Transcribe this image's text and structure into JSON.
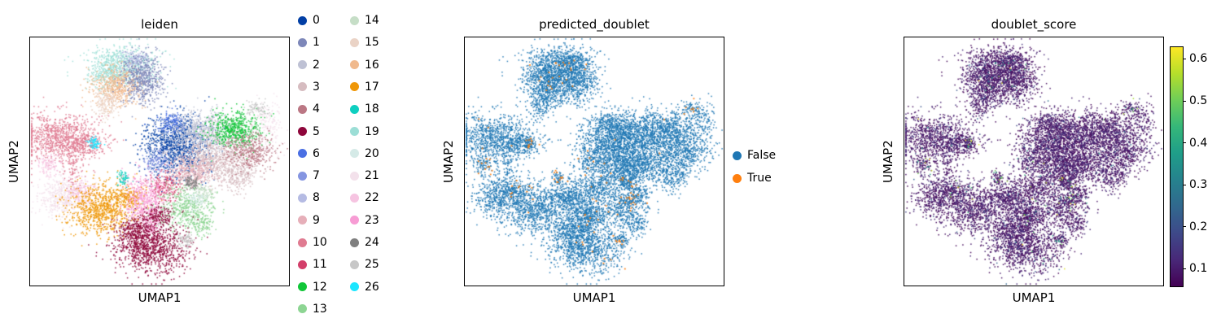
{
  "figure": {
    "background": "#ffffff",
    "panels": [
      {
        "title": "leiden",
        "xlabel": "UMAP1",
        "ylabel": "UMAP2"
      },
      {
        "title": "predicted_doublet",
        "xlabel": "UMAP1",
        "ylabel": "UMAP2"
      },
      {
        "title": "doublet_score",
        "xlabel": "UMAP1",
        "ylabel": "UMAP2"
      }
    ]
  },
  "chart_data": [
    {
      "type": "scatter",
      "title": "leiden",
      "xlabel": "UMAP1",
      "ylabel": "UMAP2",
      "legend_position": "right of axes, two columns",
      "categories": [
        "0",
        "1",
        "2",
        "3",
        "4",
        "5",
        "6",
        "7",
        "8",
        "9",
        "10",
        "11",
        "12",
        "13",
        "14",
        "15",
        "16",
        "17",
        "18",
        "19",
        "20",
        "21",
        "22",
        "23",
        "24",
        "25",
        "26"
      ],
      "palette": [
        "#023fa5",
        "#7d87b9",
        "#bec1d4",
        "#d6bcc0",
        "#bb7784",
        "#8e063b",
        "#4a6fe3",
        "#8595e1",
        "#b5bbe3",
        "#e6afb9",
        "#e07b91",
        "#d33f6a",
        "#11c638",
        "#8dd593",
        "#c6dec7",
        "#ead3c6",
        "#f0b98d",
        "#ef9708",
        "#0fcfc0",
        "#9cded6",
        "#d5eae7",
        "#f3e1eb",
        "#f6c4e1",
        "#f79cd4",
        "#7f7f7f",
        "#c7c7c7",
        "#1ce6ff"
      ],
      "coord_space": "axes fraction (x right, y down), estimated from pixels",
      "embedding_blobs": [
        {
          "cluster": "19",
          "cx": 0.356,
          "cy": 0.114,
          "sx": 0.07,
          "sy": 0.042,
          "n": 600
        },
        {
          "cluster": "19",
          "cx": 0.3,
          "cy": 0.15,
          "sx": 0.035,
          "sy": 0.028,
          "n": 180
        },
        {
          "cluster": "8",
          "cx": 0.405,
          "cy": 0.095,
          "sx": 0.028,
          "sy": 0.022,
          "n": 140,
          "dr": 0.06
        },
        {
          "cluster": "16",
          "cx": 0.335,
          "cy": 0.2,
          "sx": 0.05,
          "sy": 0.038,
          "n": 520,
          "dr": 0.03
        },
        {
          "cluster": "15",
          "cx": 0.298,
          "cy": 0.262,
          "sx": 0.028,
          "sy": 0.032,
          "n": 170
        },
        {
          "cluster": "1",
          "cx": 0.437,
          "cy": 0.165,
          "sx": 0.042,
          "sy": 0.052,
          "n": 550
        },
        {
          "cluster": "10",
          "cx": 0.125,
          "cy": 0.405,
          "sx": 0.08,
          "sy": 0.048,
          "n": 900
        },
        {
          "cluster": "10",
          "cx": 0.21,
          "cy": 0.432,
          "sx": 0.038,
          "sy": 0.022,
          "n": 180
        },
        {
          "cluster": "26",
          "cx": 0.25,
          "cy": 0.424,
          "sx": 0.012,
          "sy": 0.012,
          "n": 70,
          "dr": 0.15
        },
        {
          "cluster": "22",
          "cx": 0.068,
          "cy": 0.505,
          "sx": 0.022,
          "sy": 0.028,
          "n": 110,
          "dr": 0.1
        },
        {
          "cluster": "0",
          "cx": 0.563,
          "cy": 0.437,
          "sx": 0.062,
          "sy": 0.058,
          "n": 1100
        },
        {
          "cluster": "6",
          "cx": 0.545,
          "cy": 0.345,
          "sx": 0.026,
          "sy": 0.02,
          "n": 130
        },
        {
          "cluster": "2",
          "cx": 0.66,
          "cy": 0.383,
          "sx": 0.062,
          "sy": 0.044,
          "n": 700
        },
        {
          "cluster": "12",
          "cx": 0.795,
          "cy": 0.372,
          "sx": 0.052,
          "sy": 0.038,
          "n": 550
        },
        {
          "cluster": "3",
          "cx": 0.705,
          "cy": 0.495,
          "sx": 0.078,
          "sy": 0.048,
          "n": 800
        },
        {
          "cluster": "3",
          "cx": 0.805,
          "cy": 0.565,
          "sx": 0.038,
          "sy": 0.032,
          "n": 200
        },
        {
          "cluster": "4",
          "cx": 0.848,
          "cy": 0.458,
          "sx": 0.048,
          "sy": 0.038,
          "n": 400
        },
        {
          "cluster": "9",
          "cx": 0.618,
          "cy": 0.545,
          "sx": 0.048,
          "sy": 0.033,
          "n": 350
        },
        {
          "cluster": "7",
          "cx": 0.492,
          "cy": 0.5,
          "sx": 0.03,
          "sy": 0.026,
          "n": 150,
          "dr": 0.05
        },
        {
          "cluster": "21",
          "cx": 0.92,
          "cy": 0.35,
          "sx": 0.03,
          "sy": 0.048,
          "n": 150
        },
        {
          "cluster": "25",
          "cx": 0.872,
          "cy": 0.29,
          "sx": 0.024,
          "sy": 0.018,
          "n": 80,
          "dr": 0.12
        },
        {
          "cluster": "24",
          "cx": 0.625,
          "cy": 0.585,
          "sx": 0.014,
          "sy": 0.014,
          "n": 90,
          "dr": 0.1
        },
        {
          "cluster": "21",
          "cx": 0.13,
          "cy": 0.638,
          "sx": 0.048,
          "sy": 0.042,
          "n": 450
        },
        {
          "cluster": "22",
          "cx": 0.198,
          "cy": 0.622,
          "sx": 0.028,
          "sy": 0.024,
          "n": 150,
          "dr": 0.08
        },
        {
          "cluster": "17",
          "cx": 0.285,
          "cy": 0.69,
          "sx": 0.068,
          "sy": 0.052,
          "n": 900
        },
        {
          "cluster": "18",
          "cx": 0.362,
          "cy": 0.568,
          "sx": 0.014,
          "sy": 0.014,
          "n": 60,
          "dr": 0.25
        },
        {
          "cluster": "11",
          "cx": 0.52,
          "cy": 0.6,
          "sx": 0.028,
          "sy": 0.028,
          "n": 180,
          "dr": 0.05
        },
        {
          "cluster": "23",
          "cx": 0.438,
          "cy": 0.652,
          "sx": 0.042,
          "sy": 0.052,
          "n": 550
        },
        {
          "cluster": "23",
          "cx": 0.468,
          "cy": 0.758,
          "sx": 0.018,
          "sy": 0.036,
          "n": 120
        },
        {
          "cluster": "13",
          "cx": 0.6,
          "cy": 0.69,
          "sx": 0.052,
          "sy": 0.042,
          "n": 450
        },
        {
          "cluster": "13",
          "cx": 0.665,
          "cy": 0.752,
          "sx": 0.024,
          "sy": 0.032,
          "n": 100
        },
        {
          "cluster": "14",
          "cx": 0.668,
          "cy": 0.628,
          "sx": 0.024,
          "sy": 0.02,
          "n": 100,
          "dr": 0.06
        },
        {
          "cluster": "20",
          "cx": 0.64,
          "cy": 0.655,
          "sx": 0.02,
          "sy": 0.018,
          "n": 80,
          "dr": 0.08
        },
        {
          "cluster": "5",
          "cx": 0.468,
          "cy": 0.845,
          "sx": 0.072,
          "sy": 0.052,
          "n": 1000
        },
        {
          "cluster": "5",
          "cx": 0.402,
          "cy": 0.78,
          "sx": 0.03,
          "sy": 0.028,
          "n": 200
        },
        {
          "cluster": "5",
          "cx": 0.5,
          "cy": 0.722,
          "sx": 0.028,
          "sy": 0.024,
          "n": 150,
          "dr": 0.04
        },
        {
          "cluster": "25",
          "cx": 0.6,
          "cy": 0.815,
          "sx": 0.016,
          "sy": 0.014,
          "n": 80,
          "dr": 0.12
        },
        {
          "cluster": "17",
          "cx": 0.38,
          "cy": 0.64,
          "sx": 0.035,
          "sy": 0.018,
          "n": 90
        },
        {
          "cluster": "10",
          "cx": 0.165,
          "cy": 0.52,
          "sx": 0.018,
          "sy": 0.045,
          "n": 80
        }
      ],
      "default_doublet_rate": 0.003
    },
    {
      "type": "scatter",
      "title": "predicted_doublet",
      "xlabel": "UMAP1",
      "ylabel": "UMAP2",
      "legend_position": "right of axes",
      "categories": [
        "False",
        "True"
      ],
      "colors": [
        "#1f77b4",
        "#ff7f0e"
      ]
    },
    {
      "type": "scatter",
      "title": "doublet_score",
      "xlabel": "UMAP1",
      "ylabel": "UMAP2",
      "colormap": "viridis",
      "colorbar_range": [
        0.06,
        0.63
      ],
      "colorbar_ticks": [
        "0.6",
        "0.5",
        "0.4",
        "0.3",
        "0.2",
        "0.1"
      ],
      "viridis_stops": [
        "#440154",
        "#482878",
        "#3e4989",
        "#31688e",
        "#26828e",
        "#1f9e89",
        "#35b779",
        "#6ece58",
        "#b5de2b",
        "#fde725"
      ]
    }
  ]
}
